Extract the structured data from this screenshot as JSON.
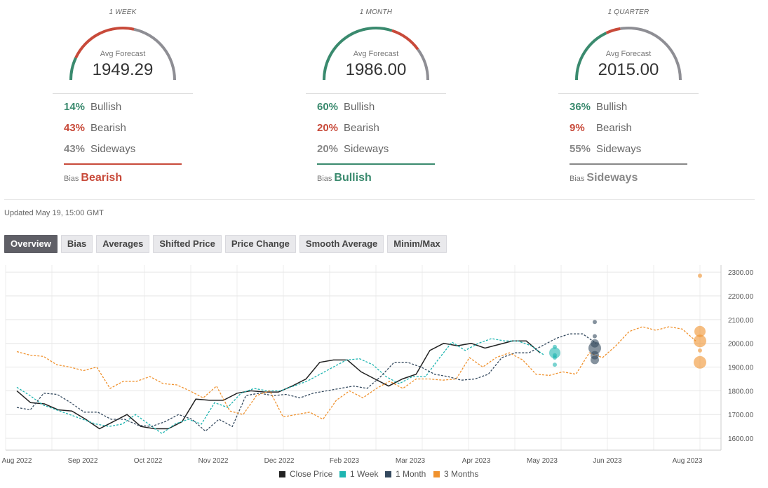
{
  "forecasts": [
    {
      "period": "1 WEEK",
      "avg_label": "Avg Forecast",
      "avg_value": "1949.29",
      "rows": [
        {
          "pct": "14%",
          "label": "Bullish",
          "color": "#3a8a6e"
        },
        {
          "pct": "43%",
          "label": "Bearish",
          "color": "#c84a3a"
        },
        {
          "pct": "43%",
          "label": "Sideways",
          "color": "#888888"
        }
      ],
      "bias_prefix": "Bias",
      "bias": "Bearish",
      "bias_color": "#c84a3a",
      "gauge": {
        "bullish": 14,
        "bearish": 43,
        "sideways": 43
      }
    },
    {
      "period": "1 MONTH",
      "avg_label": "Avg Forecast",
      "avg_value": "1986.00",
      "rows": [
        {
          "pct": "60%",
          "label": "Bullish",
          "color": "#3a8a6e"
        },
        {
          "pct": "20%",
          "label": "Bearish",
          "color": "#c84a3a"
        },
        {
          "pct": "20%",
          "label": "Sideways",
          "color": "#888888"
        }
      ],
      "bias_prefix": "Bias",
      "bias": "Bullish",
      "bias_color": "#3a8a6e",
      "gauge": {
        "bullish": 60,
        "bearish": 20,
        "sideways": 20
      }
    },
    {
      "period": "1 QUARTER",
      "avg_label": "Avg Forecast",
      "avg_value": "2015.00",
      "rows": [
        {
          "pct": "36%",
          "label": "Bullish",
          "color": "#3a8a6e"
        },
        {
          "pct": "9%",
          "label": "Bearish",
          "color": "#c84a3a"
        },
        {
          "pct": "55%",
          "label": "Sideways",
          "color": "#888888"
        }
      ],
      "bias_prefix": "Bias",
      "bias": "Sideways",
      "bias_color": "#888888",
      "gauge": {
        "bullish": 36,
        "bearish": 9,
        "sideways": 55
      }
    }
  ],
  "updated": "Updated May 19, 15:00 GMT",
  "tabs": [
    "Overview",
    "Bias",
    "Averages",
    "Shifted Price",
    "Price Change",
    "Smooth Average",
    "Minim/Max"
  ],
  "active_tab": "Overview",
  "chart_data": {
    "type": "line",
    "ylim": [
      1550,
      2330
    ],
    "yticks": [
      1600,
      1700,
      1800,
      1900,
      2000,
      2100,
      2200,
      2300
    ],
    "ytick_labels": [
      "1600.00",
      "1700.00",
      "1800.00",
      "1900.00",
      "2000.00",
      "2100.00",
      "2200.00",
      "2300.00"
    ],
    "xtick_labels": [
      "Aug 2022",
      "Sep 2022",
      "Oct 2022",
      "Nov 2022",
      "Dec 2022",
      "Feb 2023",
      "Mar 2023",
      "Apr 2023",
      "May 2023",
      "Jun 2023",
      "Aug 2023"
    ],
    "series": [
      {
        "name": "Close Price",
        "color": "#222222",
        "dash": false,
        "values": [
          1800,
          1750,
          1745,
          1720,
          1715,
          1680,
          1640,
          1670,
          1700,
          1650,
          1640,
          1640,
          1670,
          1765,
          1760,
          1760,
          1790,
          1800,
          1795,
          1795,
          1820,
          1850,
          1920,
          1930,
          1930,
          1880,
          1850,
          1820,
          1850,
          1870,
          1970,
          2000,
          1990,
          2000,
          1980,
          1995,
          2010,
          2010,
          1960
        ]
      },
      {
        "name": "1 Week",
        "color": "#1fb5b1",
        "dash": true,
        "values": [
          1815,
          1780,
          1740,
          1720,
          1700,
          1680,
          1660,
          1650,
          1660,
          1700,
          1660,
          1620,
          1660,
          1680,
          1660,
          1750,
          1730,
          1790,
          1810,
          1800,
          1800,
          1820,
          1840,
          1870,
          1900,
          1930,
          1935,
          1910,
          1860,
          1830,
          1860,
          1860,
          1935,
          2005,
          1970,
          2000,
          2020,
          2010,
          2010,
          1990,
          1950
        ]
      },
      {
        "name": "1 Month",
        "color": "#34495e",
        "dash": true,
        "values": [
          1730,
          1720,
          1790,
          1785,
          1750,
          1710,
          1710,
          1680,
          1680,
          1655,
          1650,
          1670,
          1700,
          1680,
          1630,
          1680,
          1650,
          1780,
          1790,
          1780,
          1785,
          1770,
          1790,
          1800,
          1810,
          1820,
          1810,
          1860,
          1920,
          1920,
          1900,
          1870,
          1860,
          1845,
          1850,
          1870,
          1940,
          1960,
          1960,
          1990,
          2020,
          2040,
          2040,
          2000
        ]
      },
      {
        "name": "3 Months",
        "color": "#f0922e",
        "dash": true,
        "values": [
          1965,
          1950,
          1945,
          1910,
          1900,
          1885,
          1900,
          1810,
          1840,
          1840,
          1860,
          1830,
          1825,
          1800,
          1770,
          1820,
          1715,
          1700,
          1780,
          1800,
          1690,
          1700,
          1710,
          1680,
          1760,
          1800,
          1770,
          1810,
          1840,
          1810,
          1850,
          1850,
          1845,
          1850,
          1940,
          1900,
          1940,
          1960,
          1930,
          1870,
          1865,
          1880,
          1870,
          1960,
          1940,
          1990,
          2050,
          2070,
          2055,
          2070,
          2060,
          2010
        ]
      }
    ],
    "forecast_points": [
      {
        "series": "1 Week",
        "color": "#1fb5b1",
        "values": [
          1940,
          1950,
          1960,
          1910,
          1985
        ]
      },
      {
        "series": "1 Month",
        "color": "#34495e",
        "values": [
          2090,
          2030,
          2000,
          1980,
          1950,
          1930
        ]
      },
      {
        "series": "3 Months",
        "color": "#f0922e",
        "values": [
          2285,
          2050,
          2010,
          1920,
          1970
        ]
      }
    ],
    "legend": "bottom"
  }
}
